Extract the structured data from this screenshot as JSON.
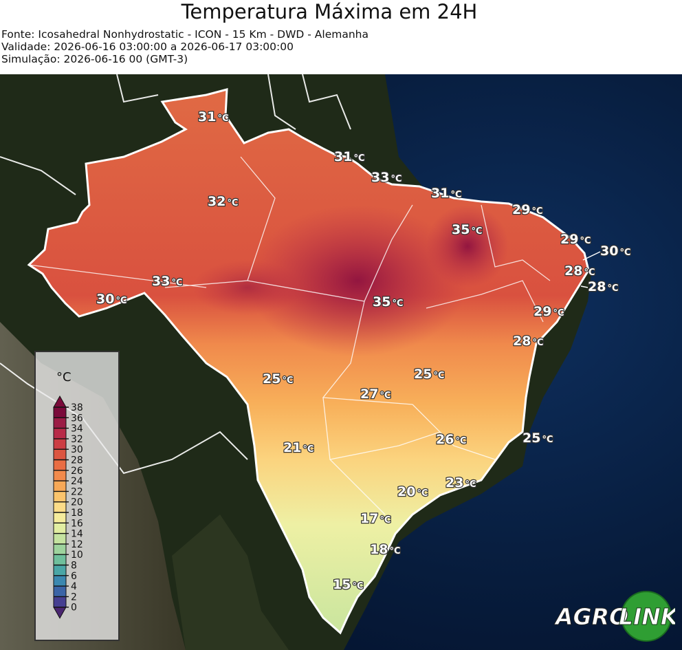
{
  "header": {
    "title": "Temperatura Máxima em 24H",
    "source": "Fonte: Icosahedral Nonhydrostatic - ICON - 15 Km - DWD - Alemanha",
    "validity": "Validade: 2026-06-16 03:00:00 a 2026-06-17 03:00:00",
    "simulation": "Simulação: 2026-06-16 00 (GMT-3)"
  },
  "map": {
    "labels": [
      {
        "value": "31",
        "unit": "°C"
      },
      {
        "value": "31",
        "unit": "°C"
      },
      {
        "value": "33",
        "unit": "°C"
      },
      {
        "value": "32",
        "unit": "°C"
      },
      {
        "value": "31",
        "unit": "°C"
      },
      {
        "value": "29",
        "unit": "°C"
      },
      {
        "value": "35",
        "unit": "°C"
      },
      {
        "value": "29",
        "unit": "°C"
      },
      {
        "value": "30",
        "unit": "°C"
      },
      {
        "value": "28",
        "unit": "°C"
      },
      {
        "value": "33",
        "unit": "°C"
      },
      {
        "value": "28",
        "unit": "°C"
      },
      {
        "value": "30",
        "unit": "°C"
      },
      {
        "value": "35",
        "unit": "°C"
      },
      {
        "value": "29",
        "unit": "°C"
      },
      {
        "value": "28",
        "unit": "°C"
      },
      {
        "value": "25",
        "unit": "°C"
      },
      {
        "value": "25",
        "unit": "°C"
      },
      {
        "value": "27",
        "unit": "°C"
      },
      {
        "value": "26",
        "unit": "°C"
      },
      {
        "value": "25",
        "unit": "°C"
      },
      {
        "value": "21",
        "unit": "°C"
      },
      {
        "value": "23",
        "unit": "°C"
      },
      {
        "value": "20",
        "unit": "°C"
      },
      {
        "value": "17",
        "unit": "°C"
      },
      {
        "value": "18",
        "unit": "°C"
      },
      {
        "value": "15",
        "unit": "°C"
      }
    ]
  },
  "legend": {
    "unit": "°C",
    "ticks": [
      "38",
      "36",
      "34",
      "32",
      "30",
      "28",
      "26",
      "24",
      "22",
      "20",
      "18",
      "16",
      "14",
      "12",
      "10",
      "8",
      "6",
      "4",
      "2",
      "0"
    ],
    "colors": [
      "#7a0a3a",
      "#9b1c45",
      "#b82a48",
      "#cc3d43",
      "#dc5540",
      "#e96d43",
      "#f28a4b",
      "#f7a857",
      "#fbc46c",
      "#fcdc88",
      "#f5ec9c",
      "#e2eea2",
      "#c5e3a0",
      "#9ed39d",
      "#6fbf9c",
      "#4aa6a6",
      "#3b88b0",
      "#3b64a6",
      "#463f91",
      "#4a2670"
    ]
  },
  "logo": {
    "part1": "AGRO",
    "part2": "LINK"
  }
}
